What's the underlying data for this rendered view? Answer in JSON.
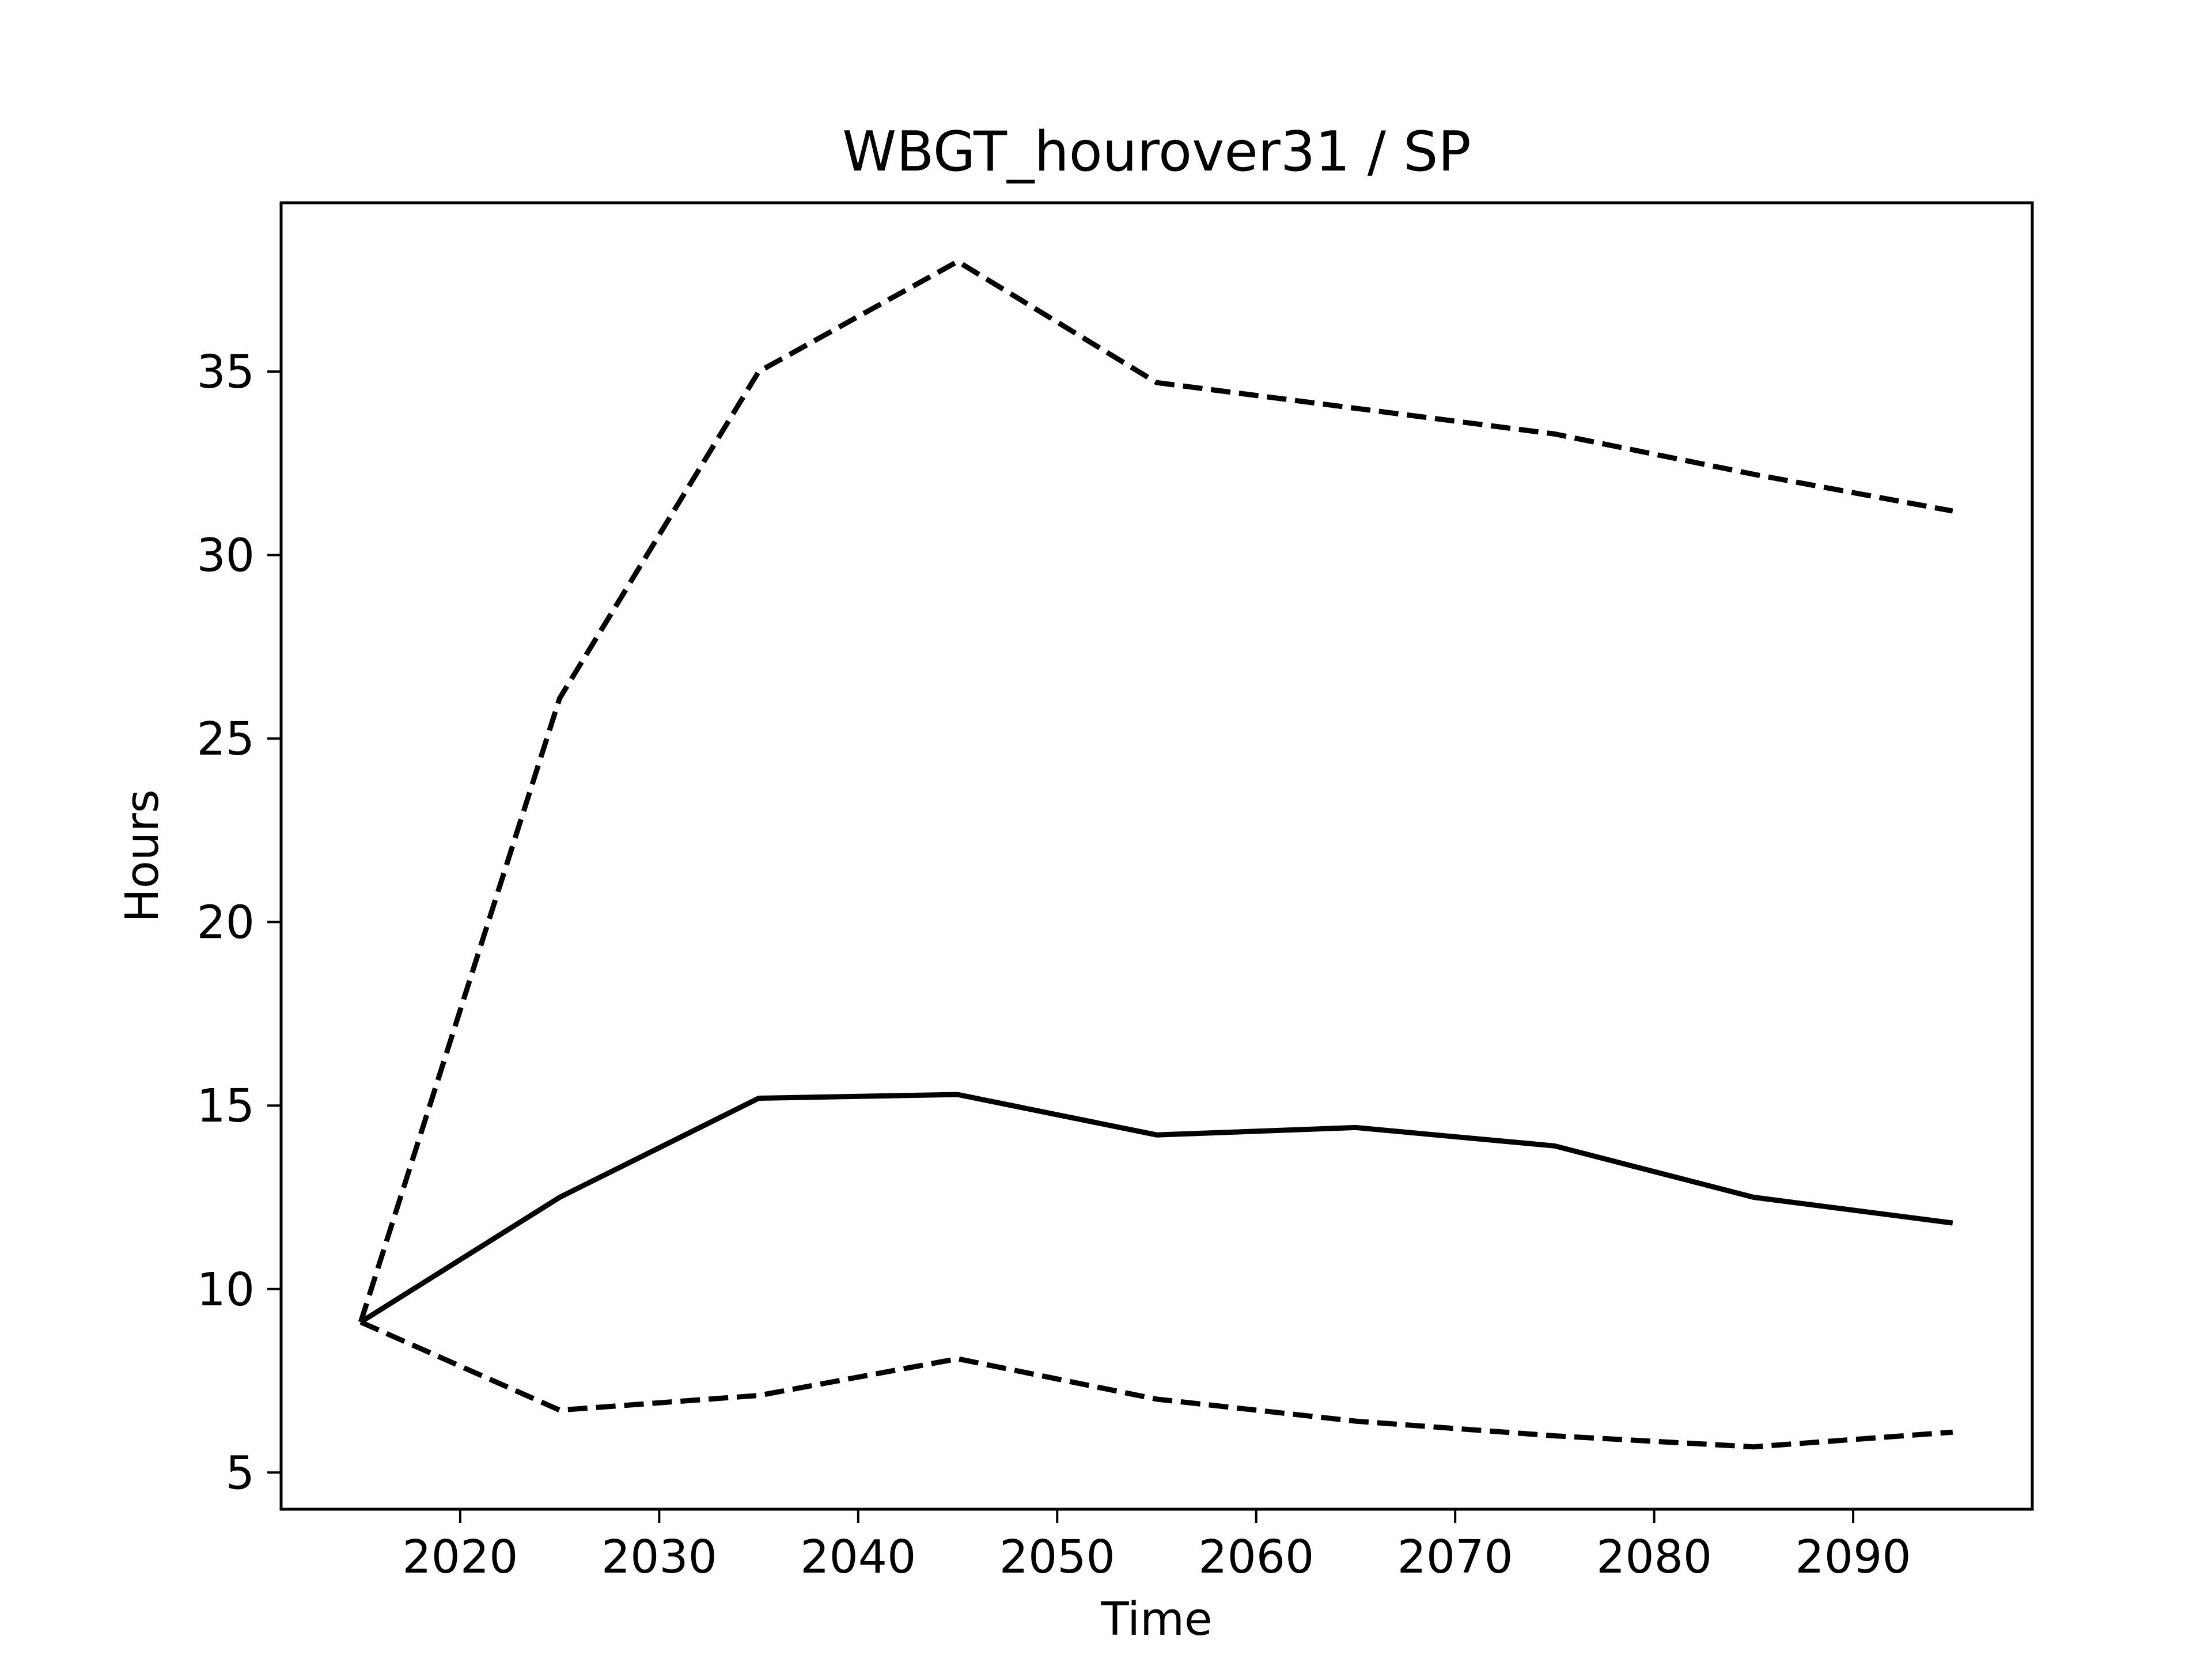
{
  "chart_data": {
    "type": "line",
    "title": "WBGT_hourover31 / SP",
    "xlabel": "Time",
    "ylabel": "Hours",
    "xlim": [
      2011,
      2099
    ],
    "ylim": [
      4.0,
      39.6
    ],
    "xticks": [
      2020,
      2030,
      2040,
      2050,
      2060,
      2070,
      2080,
      2090
    ],
    "yticks": [
      5,
      10,
      15,
      20,
      25,
      30,
      35
    ],
    "grid": false,
    "line_color": "#000000",
    "x": [
      2015,
      2025,
      2035,
      2045,
      2055,
      2065,
      2075,
      2085,
      2095
    ],
    "series": [
      {
        "style": "dashed",
        "values": [
          9.1,
          26.1,
          35.0,
          38.0,
          34.7,
          34.0,
          33.3,
          32.2,
          31.2
        ]
      },
      {
        "style": "solid",
        "values": [
          9.1,
          12.5,
          15.2,
          15.3,
          14.2,
          14.4,
          13.9,
          12.5,
          11.8
        ]
      },
      {
        "style": "dashed",
        "values": [
          9.1,
          6.7,
          7.1,
          8.1,
          7.0,
          6.4,
          6.0,
          5.7,
          6.1
        ]
      }
    ]
  }
}
